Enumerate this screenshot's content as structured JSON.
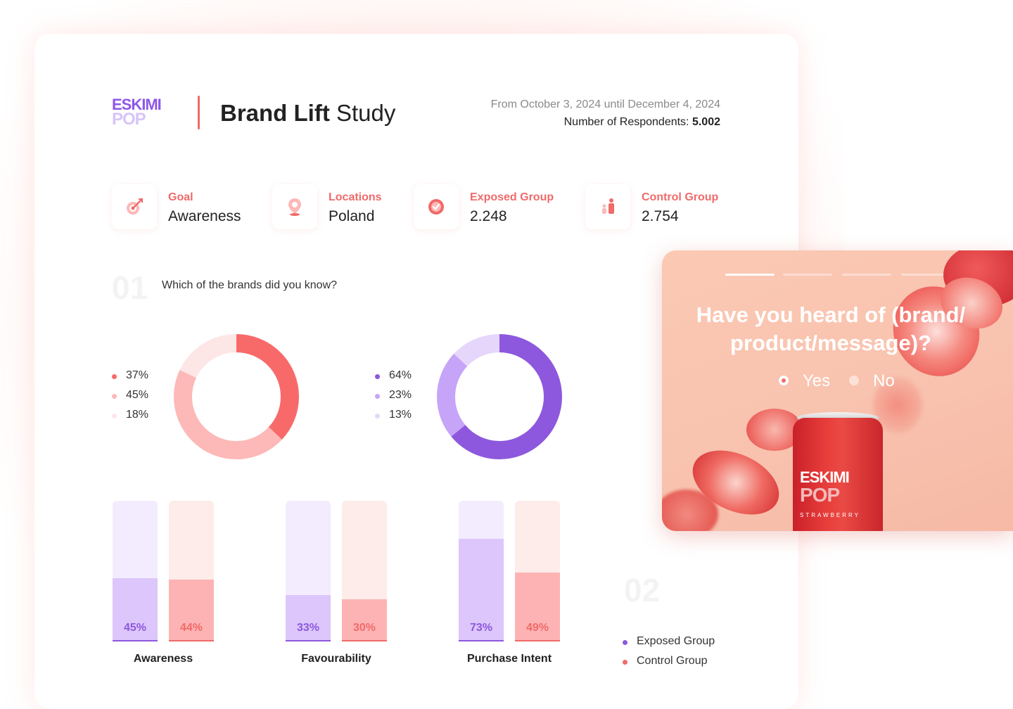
{
  "header": {
    "logo_top": "ESKIMI",
    "logo_bottom": "POP",
    "title_bold": "Brand Lift",
    "title_regular": " Study",
    "date_range": "From October 3, 2024 until December 4, 2024",
    "respondents_label": "Number of Respondents: ",
    "respondents_value": "5.002"
  },
  "stats": [
    {
      "label": "Goal",
      "value": "Awareness",
      "icon": "target-arrow-icon"
    },
    {
      "label": "Locations",
      "value": "Poland",
      "icon": "location-pin-icon"
    },
    {
      "label": "Exposed Group",
      "value": "2.248",
      "icon": "exposed-badge-icon"
    },
    {
      "label": "Control Group",
      "value": "2.754",
      "icon": "people-icon"
    }
  ],
  "question1": {
    "number": "01",
    "text": "Which of the brands did you know?"
  },
  "donut_control": {
    "legend": [
      "37%",
      "45%",
      "18%"
    ],
    "values": [
      37,
      45,
      18
    ],
    "colors": [
      "#f86a6a",
      "#fdb8b8",
      "#fde6e6"
    ]
  },
  "donut_exposed": {
    "legend": [
      "64%",
      "23%",
      "13%"
    ],
    "values": [
      64,
      23,
      13
    ],
    "colors": [
      "#8d58dd",
      "#c6a4f8",
      "#e6d6fc"
    ]
  },
  "chart_data": {
    "type": "bar",
    "categories": [
      "Awareness",
      "Favourability",
      "Purchase Intent"
    ],
    "series": [
      {
        "name": "Exposed Group",
        "values": [
          45,
          33,
          73
        ],
        "labels": [
          "45%",
          "33%",
          "73%"
        ]
      },
      {
        "name": "Control Group",
        "values": [
          44,
          30,
          49
        ],
        "labels": [
          "44%",
          "30%",
          "49%"
        ]
      }
    ],
    "ylim": [
      0,
      100
    ],
    "legend": "bottom-right"
  },
  "question2": {
    "number": "02",
    "legend": [
      "Exposed Group",
      "Control Group"
    ]
  },
  "colors": {
    "accent_red": "#f06a6a",
    "accent_purple": "#8d58dd",
    "exposed_fill": "#dcc6fb",
    "exposed_bg": "#f3ecfe",
    "control_fill": "#fdb3b3",
    "control_bg": "#fdecea"
  },
  "survey": {
    "question": "Have you heard of (brand/ product/message)?",
    "option_yes": "Yes",
    "option_no": "No",
    "can_logo_top": "ESKIMI",
    "can_logo_bottom": "POP",
    "can_flavor": "STRAWBERRY"
  }
}
